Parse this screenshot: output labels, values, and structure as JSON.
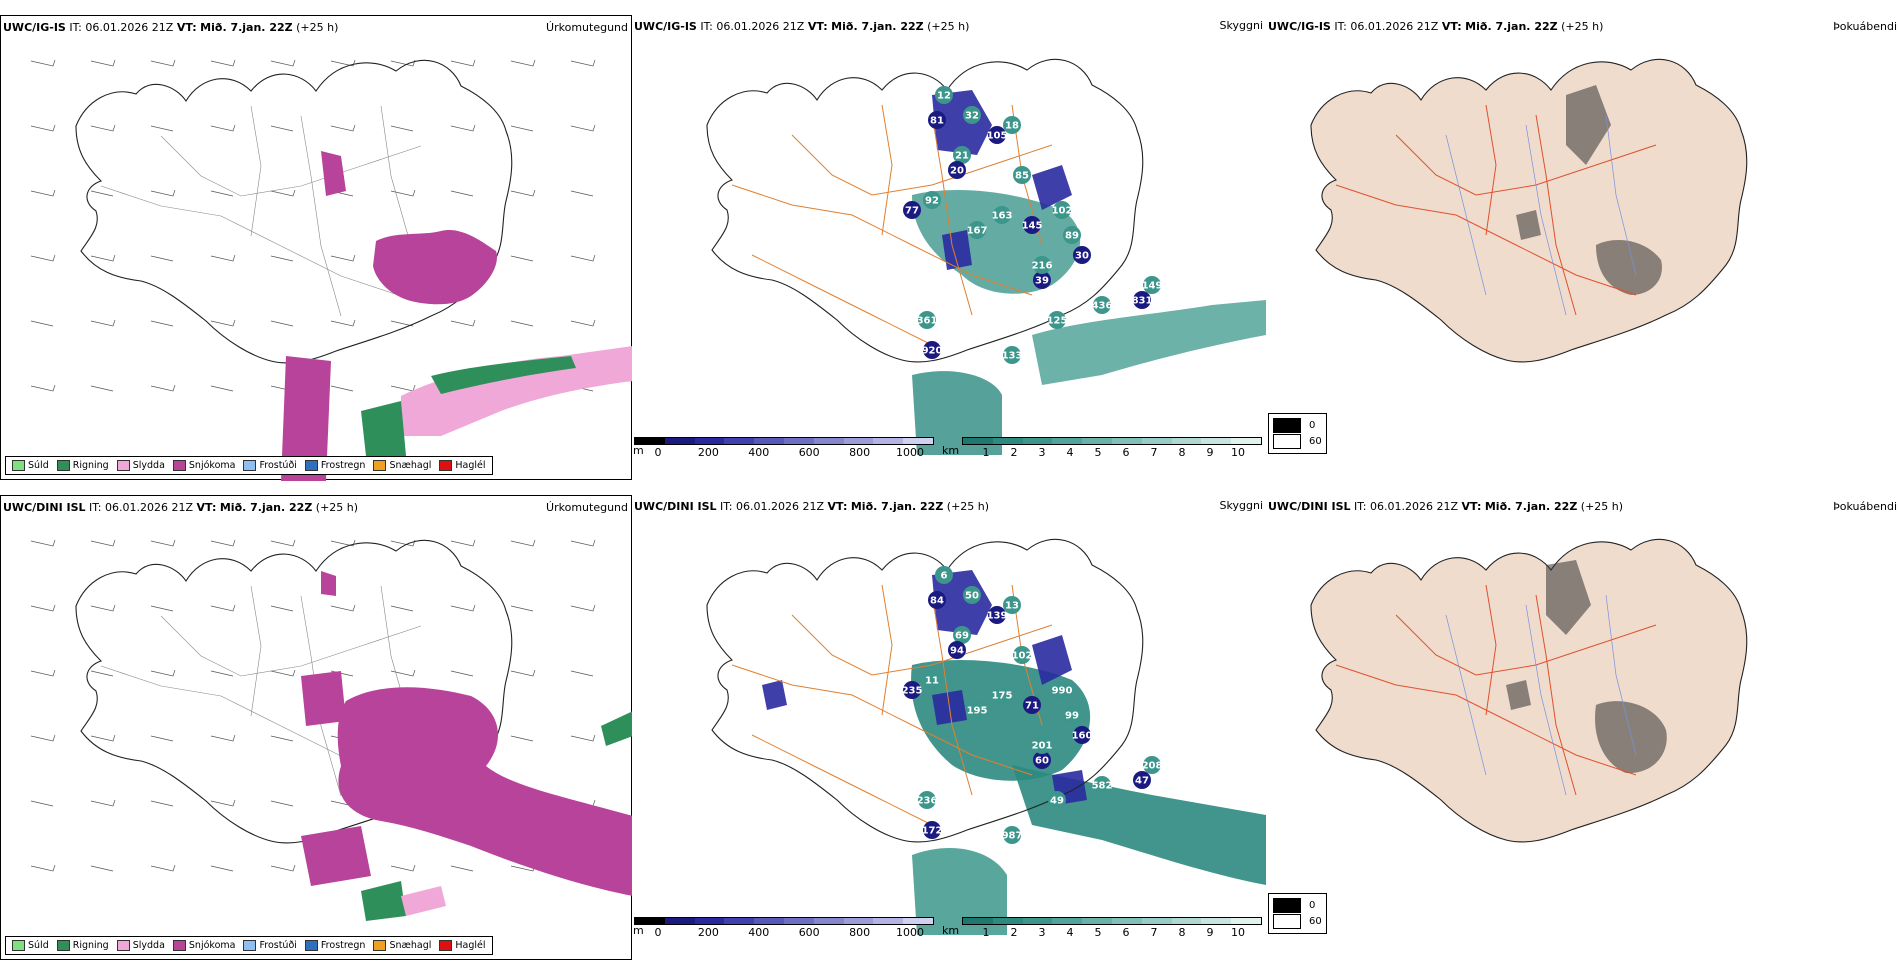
{
  "rows": [
    {
      "model": "UWC/IG-IS",
      "init_label": "IT:",
      "init_time": "06.01.2026 21Z",
      "valid_label": "VT:",
      "valid_time": "Mið. 7.jan. 22Z",
      "lead": "(+25 h)",
      "precip_title": "Úrkomutegund",
      "cloud_title": "Skyggni",
      "fog_title": "Þokuábendi",
      "vis_labels": [
        "81",
        "12",
        "32",
        "105",
        "18",
        "21",
        "20",
        "85",
        "92",
        "77",
        "163",
        "167",
        "145",
        "102",
        "89",
        "39",
        "361",
        "436",
        "831",
        "125",
        "149",
        "920",
        "133",
        "216",
        "30"
      ],
      "vis_values": [
        81,
        12,
        32,
        105,
        18,
        21,
        20,
        85,
        92,
        77,
        163,
        167,
        145,
        102,
        89,
        39,
        361,
        436,
        831,
        125,
        149,
        920,
        133,
        216,
        30
      ]
    },
    {
      "model": "UWC/DINI ISL",
      "init_label": "IT:",
      "init_time": "06.01.2026 21Z",
      "valid_label": "VT:",
      "valid_time": "Mið. 7.jan. 22Z",
      "lead": "(+25 h)",
      "precip_title": "Úrkomutegund",
      "cloud_title": "Skyggni",
      "fog_title": "Þokuábendi",
      "vis_labels": [
        "84",
        "6",
        "50",
        "139",
        "13",
        "69",
        "94",
        "102",
        "11",
        "235",
        "175",
        "195",
        "71",
        "990",
        "99",
        "60",
        "236",
        "582",
        "47",
        "49",
        "208",
        "172",
        "987",
        "201",
        "160"
      ],
      "vis_values": [
        84,
        6,
        50,
        139,
        13,
        69,
        94,
        102,
        11,
        235,
        175,
        195,
        71,
        990,
        99,
        60,
        236,
        582,
        47,
        49,
        208,
        172,
        987,
        201,
        160
      ]
    }
  ],
  "precip_legend": [
    {
      "label": "Súld",
      "color": "#7fe07f"
    },
    {
      "label": "Rigning",
      "color": "#2f8f5a"
    },
    {
      "label": "Slydda",
      "color": "#f0a8d8"
    },
    {
      "label": "Snjókoma",
      "color": "#b8439a"
    },
    {
      "label": "Frostúði",
      "color": "#8fbff0"
    },
    {
      "label": "Frostregn",
      "color": "#2f6fc0"
    },
    {
      "label": "Snæhagl",
      "color": "#f0a020"
    },
    {
      "label": "Haglél",
      "color": "#e01010"
    }
  ],
  "ceiling_bar": {
    "unit": "m",
    "ticks": [
      "0",
      "200",
      "400",
      "600",
      "800",
      "1000"
    ],
    "colors": [
      "#000000",
      "#1a1a80",
      "#2a2aa0",
      "#4040b0",
      "#5858b8",
      "#6e6ec4",
      "#8686cc",
      "#9c9cd8",
      "#b4b4e4",
      "#d0d0f0"
    ]
  },
  "vis_bar": {
    "unit": "km",
    "ticks": [
      "1",
      "2",
      "3",
      "4",
      "5",
      "6",
      "7",
      "8",
      "9",
      "10"
    ],
    "colors": [
      "#1e7870",
      "#2c8a80",
      "#3c968c",
      "#52a49a",
      "#68b2a8",
      "#80c0b8",
      "#98ccc6",
      "#b0d8d2",
      "#c8e4e0",
      "#e2f2ef"
    ]
  },
  "fog_legend": [
    {
      "label": "0",
      "color": "#000000"
    },
    {
      "label": "60",
      "color": "#ffffff"
    }
  ]
}
